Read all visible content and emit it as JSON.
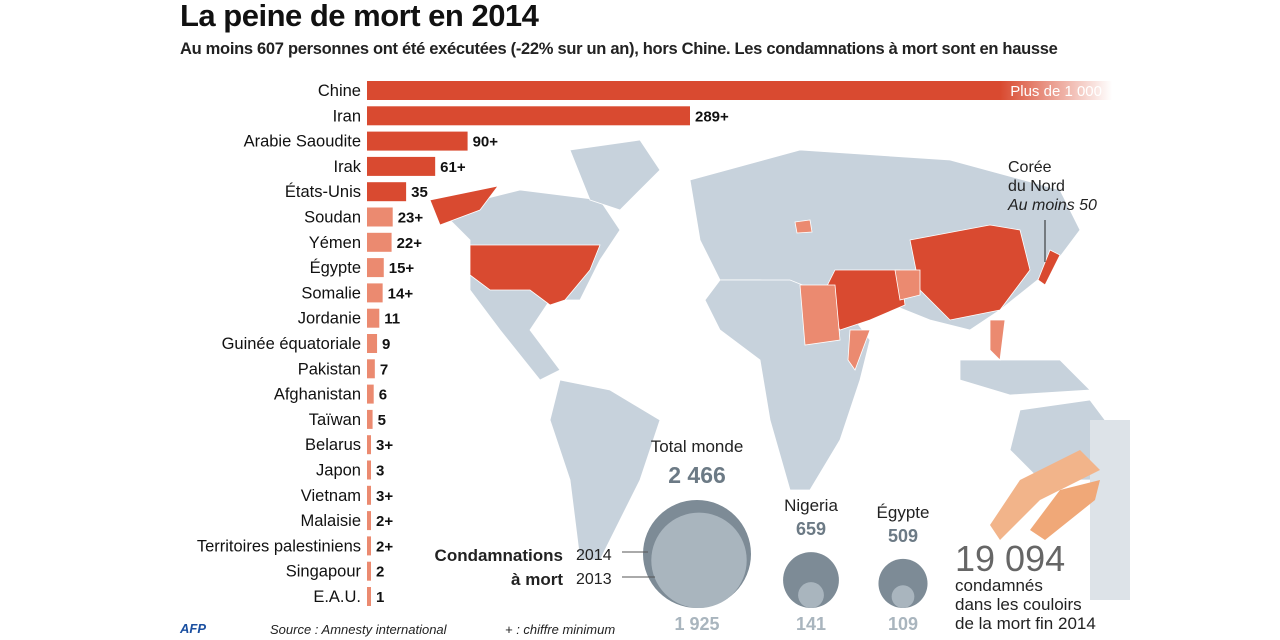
{
  "title": "La peine de mort en 2014",
  "subtitle": "Au moins 607 personnes ont été exécutées (-22% sur un an), hors Chine. Les condamnations à mort sont en hausse",
  "chart_data": {
    "type": "bar",
    "orientation": "horizontal",
    "title": "La peine de mort en 2014",
    "categories": [
      "Chine",
      "Iran",
      "Arabie Saoudite",
      "Irak",
      "États-Unis",
      "Soudan",
      "Yémen",
      "Égypte",
      "Somalie",
      "Jordanie",
      "Guinée équatoriale",
      "Pakistan",
      "Afghanistan",
      "Taïwan",
      "Belarus",
      "Japon",
      "Vietnam",
      "Malaisie",
      "Territoires palestiniens",
      "Singapour",
      "E.A.U."
    ],
    "values": [
      1000,
      289,
      90,
      61,
      35,
      23,
      22,
      15,
      14,
      11,
      9,
      7,
      6,
      5,
      3,
      3,
      3,
      2,
      2,
      2,
      1
    ],
    "labels": [
      "Plus de 1 000",
      "289+",
      "90+",
      "61+",
      "35",
      "23+",
      "22+",
      "15+",
      "14+",
      "11",
      "9",
      "7",
      "6",
      "5",
      "3+",
      "3",
      "3+",
      "2+",
      "2+",
      "2",
      "1"
    ],
    "colors": {
      "high": "#d94a30",
      "low": "#eb8a70",
      "map_land": "#c7d2dc",
      "bubble_2014": "#7d8b96",
      "bubble_2013": "#a9b5be"
    }
  },
  "map_annotation": {
    "country": "Corée du Nord",
    "line1": "Corée",
    "line2": "du Nord",
    "value": "Au moins 50"
  },
  "sentences": {
    "label_line1": "Condamnations",
    "label_line2": "à mort",
    "year_2014": "2014",
    "year_2013": "2013",
    "bubbles": [
      {
        "name": "Total monde",
        "v2014": "2 466",
        "v2013": "1 925",
        "n2014": 2466,
        "n2013": 1925
      },
      {
        "name": "Nigeria",
        "v2014": "659",
        "v2013": "141",
        "n2014": 659,
        "n2013": 141
      },
      {
        "name": "Égypte",
        "v2014": "509",
        "v2013": "109",
        "n2014": 509,
        "n2013": 109
      }
    ]
  },
  "death_row": {
    "number": "19 094",
    "line1": "condamnés",
    "line2": "dans les couloirs",
    "line3": "de la mort fin 2014"
  },
  "footer": {
    "logo": "AFP",
    "source": "Source : Amnesty international",
    "note": "+ :  chiffre minimum"
  }
}
